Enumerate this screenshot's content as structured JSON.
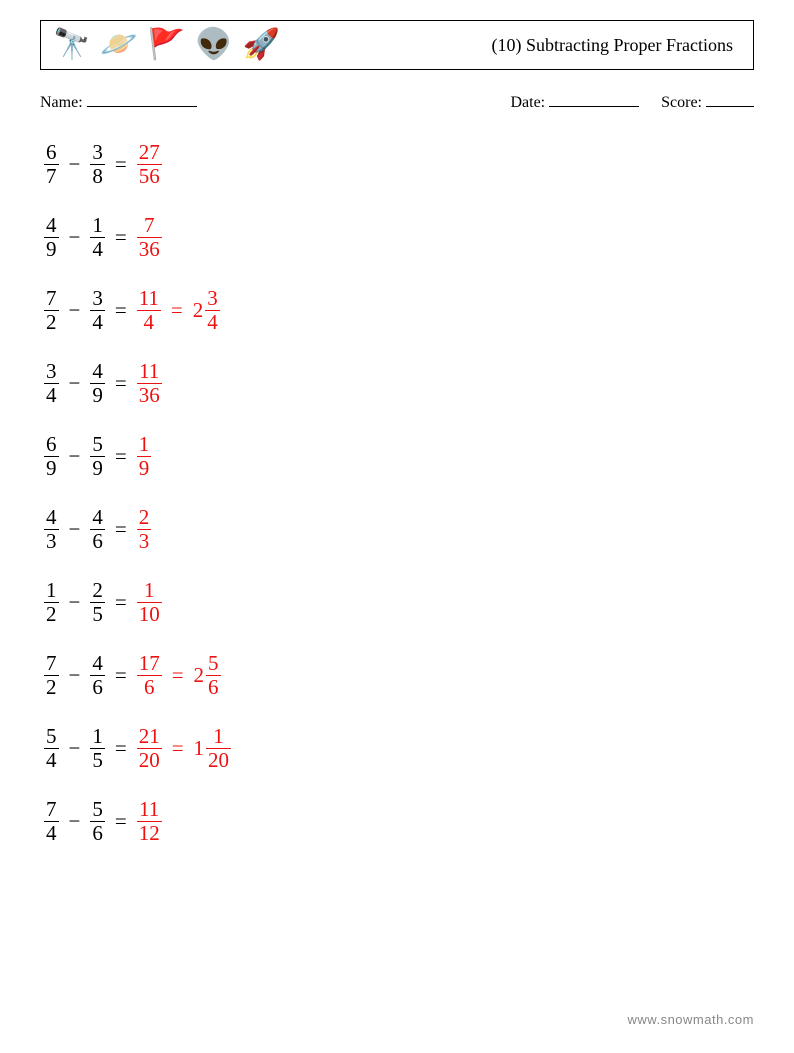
{
  "colors": {
    "text": "#000000",
    "answer": "#ee1111",
    "background": "#ffffff",
    "footer": "#888888",
    "border": "#000000"
  },
  "typography": {
    "body_font": "Georgia, serif",
    "title_fontsize_pt": 14,
    "meta_fontsize_pt": 12,
    "problem_fontsize_pt": 16,
    "footer_fontsize_pt": 10
  },
  "header": {
    "title": "(10) Subtracting Proper Fractions",
    "icons": [
      "🔭",
      "🪐",
      "🚩",
      "👽",
      "🚀"
    ]
  },
  "meta": {
    "name_label": "Name:",
    "date_label": "Date:",
    "score_label": "Score:"
  },
  "labels": {
    "minus": "−",
    "equals": "="
  },
  "problems": [
    {
      "a": {
        "n": "6",
        "d": "7"
      },
      "b": {
        "n": "3",
        "d": "8"
      },
      "ans": [
        {
          "type": "frac",
          "n": "27",
          "d": "56"
        }
      ]
    },
    {
      "a": {
        "n": "4",
        "d": "9"
      },
      "b": {
        "n": "1",
        "d": "4"
      },
      "ans": [
        {
          "type": "frac",
          "n": "7",
          "d": "36"
        }
      ]
    },
    {
      "a": {
        "n": "7",
        "d": "2"
      },
      "b": {
        "n": "3",
        "d": "4"
      },
      "ans": [
        {
          "type": "frac",
          "n": "11",
          "d": "4"
        },
        {
          "type": "mixed",
          "w": "2",
          "n": "3",
          "d": "4"
        }
      ]
    },
    {
      "a": {
        "n": "3",
        "d": "4"
      },
      "b": {
        "n": "4",
        "d": "9"
      },
      "ans": [
        {
          "type": "frac",
          "n": "11",
          "d": "36"
        }
      ]
    },
    {
      "a": {
        "n": "6",
        "d": "9"
      },
      "b": {
        "n": "5",
        "d": "9"
      },
      "ans": [
        {
          "type": "frac",
          "n": "1",
          "d": "9"
        }
      ]
    },
    {
      "a": {
        "n": "4",
        "d": "3"
      },
      "b": {
        "n": "4",
        "d": "6"
      },
      "ans": [
        {
          "type": "frac",
          "n": "2",
          "d": "3"
        }
      ]
    },
    {
      "a": {
        "n": "1",
        "d": "2"
      },
      "b": {
        "n": "2",
        "d": "5"
      },
      "ans": [
        {
          "type": "frac",
          "n": "1",
          "d": "10"
        }
      ]
    },
    {
      "a": {
        "n": "7",
        "d": "2"
      },
      "b": {
        "n": "4",
        "d": "6"
      },
      "ans": [
        {
          "type": "frac",
          "n": "17",
          "d": "6"
        },
        {
          "type": "mixed",
          "w": "2",
          "n": "5",
          "d": "6"
        }
      ]
    },
    {
      "a": {
        "n": "5",
        "d": "4"
      },
      "b": {
        "n": "1",
        "d": "5"
      },
      "ans": [
        {
          "type": "frac",
          "n": "21",
          "d": "20"
        },
        {
          "type": "mixed",
          "w": "1",
          "n": "1",
          "d": "20"
        }
      ]
    },
    {
      "a": {
        "n": "7",
        "d": "4"
      },
      "b": {
        "n": "5",
        "d": "6"
      },
      "ans": [
        {
          "type": "frac",
          "n": "11",
          "d": "12"
        }
      ]
    }
  ],
  "footer": {
    "text": "www.snowmath.com"
  }
}
